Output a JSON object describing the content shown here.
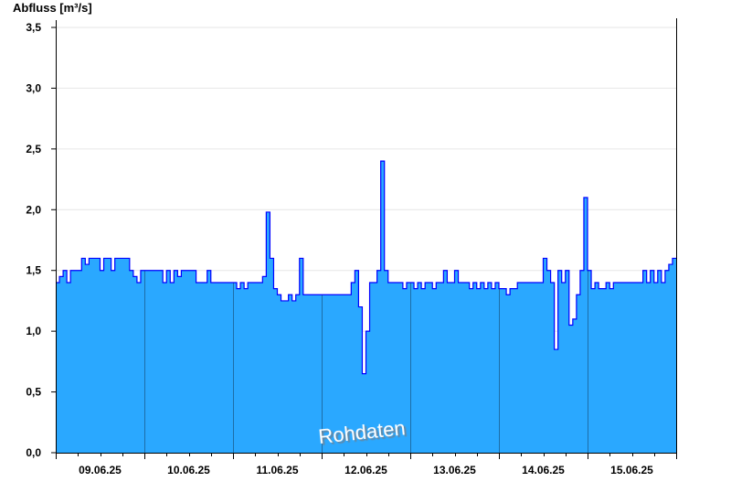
{
  "chart_data": {
    "type": "area",
    "title": "",
    "ylabel": "Abfluss [m³/s]",
    "xlabel": "",
    "ylim": [
      0,
      3.5
    ],
    "yticks": [
      "0,0",
      "0,5",
      "1,0",
      "1,5",
      "2,0",
      "2,5",
      "3,0",
      "3,5"
    ],
    "ytick_values": [
      0,
      0.5,
      1.0,
      1.5,
      2.0,
      2.5,
      3.0,
      3.5
    ],
    "xlim": [
      "09.06.25 00:00",
      "16.06.25 00:00"
    ],
    "xticks": [
      "09.06.25",
      "10.06.25",
      "11.06.25",
      "12.06.25",
      "13.06.25",
      "14.06.25",
      "15.06.25"
    ],
    "grid": "horizontal",
    "watermark": "Rohdaten",
    "colors": {
      "fill": "#2aa8ff",
      "line": "#0000ff",
      "day_separator": "#1d6ea8",
      "grid": "#e6e6e6"
    },
    "series": [
      {
        "interval": "hourly",
        "values": [
          1.4,
          1.45,
          1.5,
          1.4,
          1.5,
          1.5,
          1.5,
          1.6,
          1.55,
          1.6,
          1.6,
          1.6,
          1.5,
          1.6,
          1.6,
          1.5,
          1.6,
          1.6,
          1.6,
          1.6,
          1.5,
          1.45,
          1.4,
          1.5,
          1.5,
          1.5,
          1.5,
          1.5,
          1.5,
          1.4,
          1.5,
          1.4,
          1.5,
          1.45,
          1.5,
          1.5,
          1.5,
          1.5,
          1.4,
          1.4,
          1.4,
          1.5,
          1.4,
          1.4,
          1.4,
          1.4,
          1.4,
          1.4,
          1.4,
          1.35,
          1.4,
          1.35,
          1.4,
          1.4,
          1.4,
          1.4,
          1.45,
          1.98,
          1.6,
          1.35,
          1.3,
          1.25,
          1.25,
          1.3,
          1.25,
          1.3,
          1.6,
          1.3,
          1.3,
          1.3,
          1.3,
          1.3,
          1.3,
          1.3,
          1.3,
          1.3,
          1.3,
          1.3,
          1.3,
          1.3,
          1.4,
          1.5,
          1.2,
          0.65,
          1.0,
          1.4,
          1.4,
          1.5,
          2.4,
          1.5,
          1.4,
          1.4,
          1.4,
          1.4,
          1.35,
          1.4,
          1.4,
          1.35,
          1.4,
          1.35,
          1.4,
          1.4,
          1.35,
          1.4,
          1.4,
          1.5,
          1.4,
          1.4,
          1.5,
          1.4,
          1.4,
          1.4,
          1.35,
          1.4,
          1.35,
          1.4,
          1.35,
          1.4,
          1.35,
          1.4,
          1.35,
          1.35,
          1.3,
          1.35,
          1.35,
          1.4,
          1.4,
          1.4,
          1.4,
          1.4,
          1.4,
          1.4,
          1.6,
          1.5,
          1.4,
          0.85,
          1.5,
          1.4,
          1.5,
          1.05,
          1.1,
          1.3,
          1.5,
          2.1,
          1.5,
          1.35,
          1.4,
          1.35,
          1.35,
          1.4,
          1.35,
          1.4,
          1.4,
          1.4,
          1.4,
          1.4,
          1.4,
          1.4,
          1.4,
          1.5,
          1.4,
          1.5,
          1.4,
          1.5,
          1.4,
          1.5,
          1.55,
          1.6
        ]
      }
    ]
  }
}
